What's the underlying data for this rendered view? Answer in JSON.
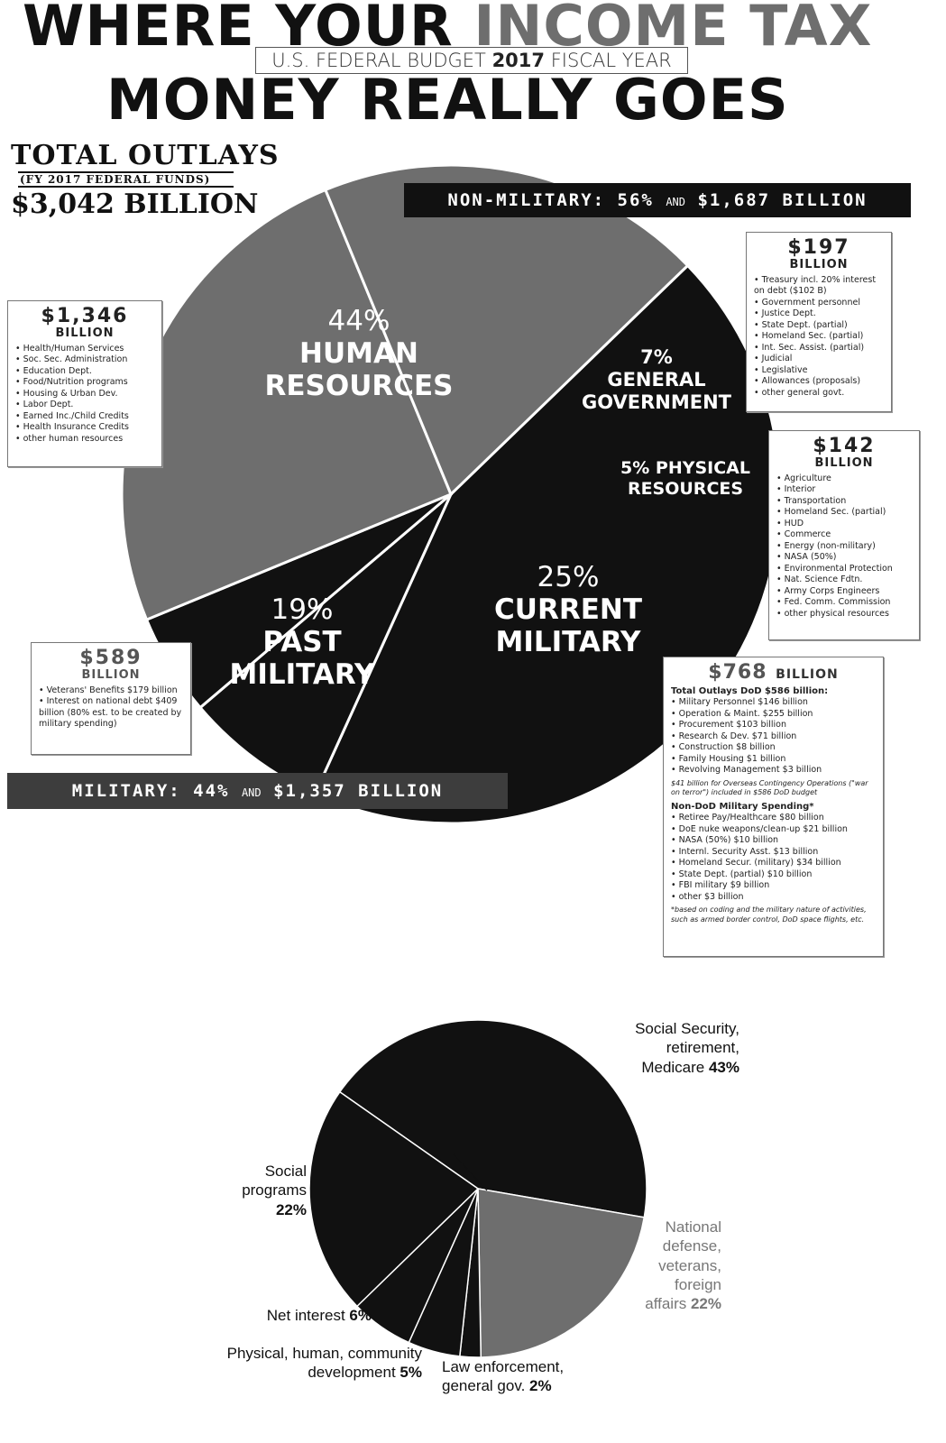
{
  "header": {
    "title_part1": "WHERE YOUR ",
    "title_part2": "INCOME TAX",
    "title_line2": "MONEY REALLY GOES",
    "subtitle_pre": "U.S. FEDERAL BUDGET ",
    "subtitle_year": "2017",
    "subtitle_post": " FISCAL YEAR"
  },
  "totals": {
    "line1": "TOTAL OUTLAYS",
    "line2": "(FY 2017 FEDERAL FUNDS)",
    "line3": "$3,042 BILLION"
  },
  "banners": {
    "non_military_a": "NON-MILITARY: 56%",
    "non_military_and": "AND",
    "non_military_b": "$1,687 BILLION",
    "military_a": "MILITARY: 44%",
    "military_and": "AND",
    "military_b": "$1,357 BILLION"
  },
  "boxes": {
    "human": {
      "amount": "$1,346",
      "unit": "BILLION",
      "items": [
        "Health/Human Services",
        "Soc. Sec. Administration",
        "Education Dept.",
        "Food/Nutrition programs",
        "Housing & Urban Dev.",
        "Labor Dept.",
        "Earned Inc./Child Credits",
        "Health Insurance Credits",
        "other human resources"
      ]
    },
    "general": {
      "amount": "$197",
      "unit": "BILLION",
      "items": [
        "Treasury incl. 20% interest on debt ($102 B)",
        "Government personnel",
        "Justice Dept.",
        "State Dept. (partial)",
        "Homeland Sec. (partial)",
        "Int. Sec. Assist. (partial)",
        "Judicial",
        "Legislative",
        "Allowances (proposals)",
        "other general govt."
      ]
    },
    "physical": {
      "amount": "$142",
      "unit": "BILLION",
      "items": [
        "Agriculture",
        "Interior",
        "Transportation",
        "Homeland Sec. (partial)",
        "HUD",
        "Commerce",
        "Energy (non-military)",
        "NASA (50%)",
        "Environmental Protection",
        "Nat. Science Fdtn.",
        "Army Corps Engineers",
        "Fed. Comm. Commission",
        "other physical resources"
      ]
    },
    "past": {
      "amount": "$589",
      "unit": "BILLION",
      "items": [
        "Veterans' Benefits $179 billion",
        "Interest on national debt $409 billion (80% est. to be created by military spending)"
      ]
    },
    "current": {
      "amount": "$768",
      "unit": "BILLION",
      "dod_heading": "Total Outlays DoD $586 billion:",
      "dod_items": [
        "Military Personnel $146 billion",
        "Operation & Maint. $255 billion",
        "Procurement $103 billion",
        "Research & Dev. $71 billion",
        "Construction $8 billion",
        "Family Housing $1 billion",
        "Revolving Management $3 billion"
      ],
      "dod_note": "$41 billion for Overseas Contingency Operations (\"war on terror\") included in $586 DoD budget",
      "nondod_heading": "Non-DoD Military Spending*",
      "nondod_items": [
        "Retiree Pay/Healthcare $80 billion",
        "DoE nuke weapons/clean-up $21 billion",
        "NASA (50%) $10 billion",
        "Internl. Security Asst. $13 billion",
        "Homeland Secur. (military) $34 billion",
        "State Dept. (partial) $10 billion",
        "FBI military $9 billion",
        "other $3 billion"
      ],
      "footnote": "*based on coding and the military nature of activities, such as armed border control, DoD space flights, etc."
    }
  },
  "chart_data": [
    {
      "type": "pie",
      "title": "WHERE YOUR INCOME TAX MONEY REALLY GOES",
      "slices": [
        {
          "name": "HUMAN RESOURCES",
          "percent": 44,
          "billions": 1346,
          "color": "#111111",
          "label_lines": [
            "44%",
            "HUMAN",
            "RESOURCES"
          ]
        },
        {
          "name": "GENERAL GOVERNMENT",
          "percent": 7,
          "billions": 197,
          "color": "#111111",
          "label_lines": [
            "7%",
            "GENERAL",
            "GOVERNMENT"
          ]
        },
        {
          "name": "PHYSICAL RESOURCES",
          "percent": 5,
          "billions": 142,
          "color": "#111111",
          "label_lines": [
            "5% PHYSICAL",
            "RESOURCES"
          ]
        },
        {
          "name": "CURRENT MILITARY",
          "percent": 25,
          "billions": 768,
          "color": "#6e6e6e",
          "label_lines": [
            "25%",
            "CURRENT",
            "MILITARY"
          ]
        },
        {
          "name": "PAST MILITARY",
          "percent": 19,
          "billions": 589,
          "color": "#6e6e6e",
          "label_lines": [
            "19%",
            "PAST",
            "MILITARY"
          ]
        }
      ]
    },
    {
      "type": "pie",
      "slices": [
        {
          "label_lines": [
            "Social Security,",
            "retirement,"
          ],
          "label_last": "Medicare",
          "pct_text": "43%",
          "percent": 43,
          "color": "#111111"
        },
        {
          "label_lines": [
            "National",
            "defense,",
            "veterans,",
            "foreign"
          ],
          "label_last": "affairs",
          "pct_text": "22%",
          "percent": 22,
          "color": "#6e6e6e"
        },
        {
          "label_lines": [
            "Law enforcement,"
          ],
          "label_last": "general gov.",
          "pct_text": "2%",
          "percent": 2,
          "color": "#111111"
        },
        {
          "label_lines": [
            "Physical, human, community"
          ],
          "label_last": "development",
          "pct_text": "5%",
          "percent": 5,
          "color": "#111111"
        },
        {
          "label_lines": [],
          "label_last": "Net interest",
          "pct_text": "6%",
          "percent": 6,
          "color": "#111111"
        },
        {
          "label_lines": [
            "Social",
            "programs"
          ],
          "label_last": "",
          "pct_text": "22%",
          "percent": 22,
          "color": "#111111"
        }
      ]
    }
  ]
}
